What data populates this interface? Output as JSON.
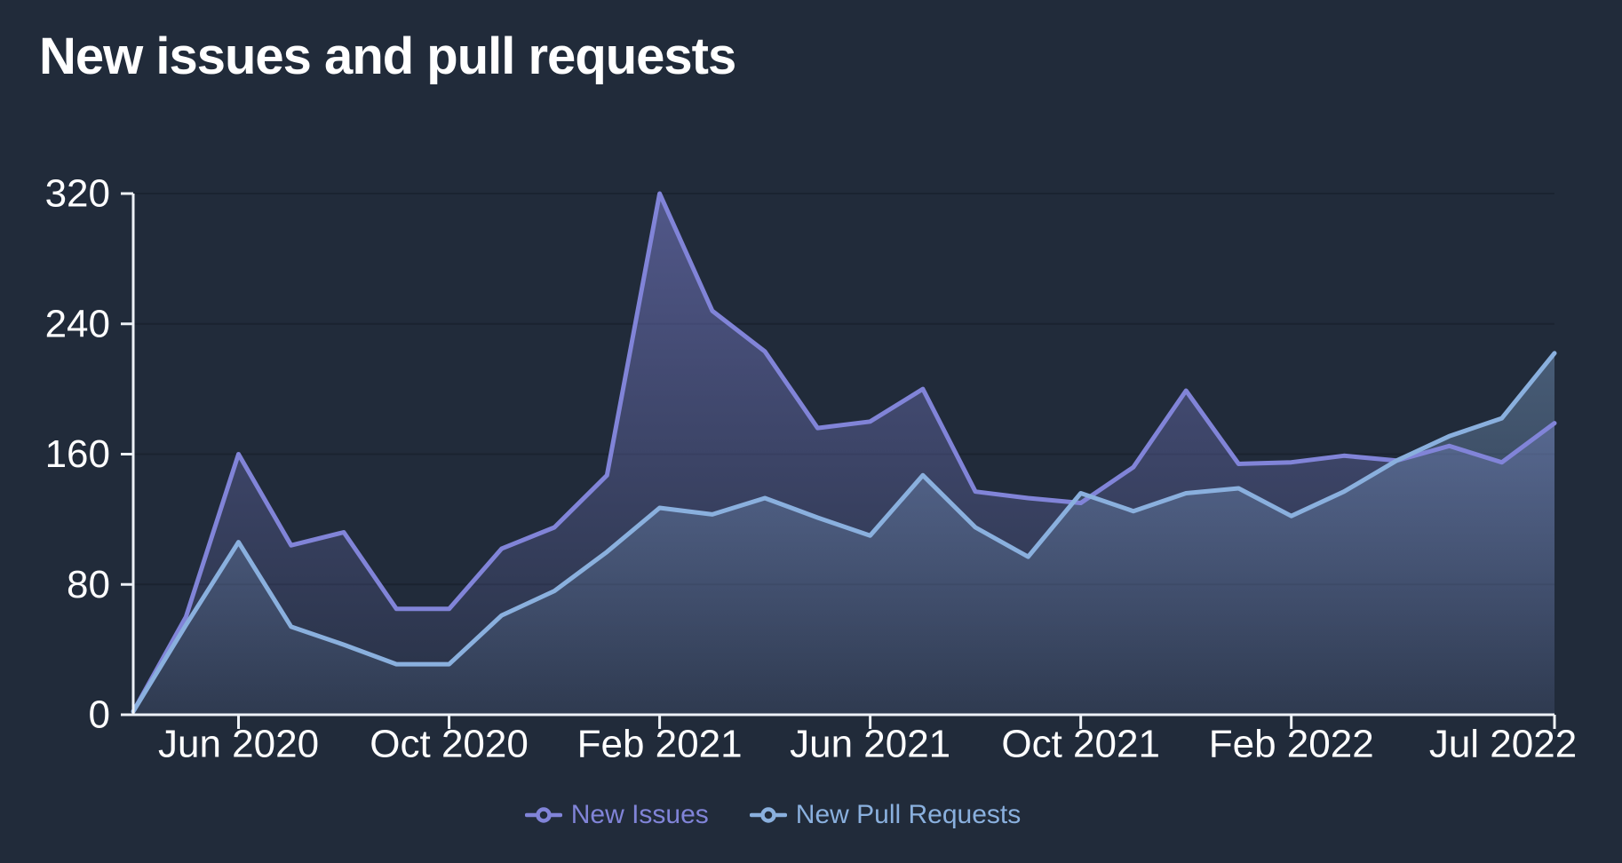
{
  "page": {
    "title": "New issues and pull requests"
  },
  "chart_data": {
    "type": "area",
    "title": "New issues and pull requests",
    "x": [
      "Apr 2020",
      "May 2020",
      "Jun 2020",
      "Jul 2020",
      "Aug 2020",
      "Sep 2020",
      "Oct 2020",
      "Nov 2020",
      "Dec 2020",
      "Jan 2021",
      "Feb 2021",
      "Mar 2021",
      "Apr 2021",
      "May 2021",
      "Jun 2021",
      "Jul 2021",
      "Aug 2021",
      "Sep 2021",
      "Oct 2021",
      "Nov 2021",
      "Dec 2021",
      "Jan 2022",
      "Feb 2022",
      "Mar 2022",
      "Apr 2022",
      "May 2022",
      "Jun 2022",
      "Jul 2022"
    ],
    "series": [
      {
        "name": "New Issues",
        "color": "#8184d8",
        "values": [
          2,
          60,
          160,
          104,
          112,
          65,
          65,
          102,
          115,
          147,
          320,
          248,
          223,
          176,
          180,
          200,
          137,
          133,
          130,
          152,
          199,
          154,
          155,
          159,
          156,
          165,
          155,
          179
        ]
      },
      {
        "name": "New Pull Requests",
        "color": "#8ab0de",
        "values": [
          2,
          55,
          106,
          54,
          43,
          31,
          31,
          61,
          76,
          100,
          127,
          123,
          133,
          121,
          110,
          147,
          115,
          97,
          136,
          125,
          136,
          139,
          122,
          137,
          156,
          171,
          182,
          222
        ]
      }
    ],
    "x_tick_labels": [
      "Jun 2020",
      "Oct 2020",
      "Feb 2021",
      "Jun 2021",
      "Oct 2021",
      "Feb 2022",
      "Jul 2022"
    ],
    "x_tick_indices": [
      2,
      6,
      10,
      14,
      18,
      22,
      27
    ],
    "yticks": [
      "0",
      "80",
      "160",
      "240",
      "320"
    ],
    "ylim": [
      0,
      320
    ],
    "grid": "horizontal-only",
    "legend_position": "bottom",
    "colors": {
      "background": "#212b3a",
      "axis": "#eef2f7",
      "gridline": "#1a2330",
      "title_text": "#ffffff",
      "issues_line": "#8184d8",
      "pull_requests_line": "#8ab0de"
    }
  }
}
